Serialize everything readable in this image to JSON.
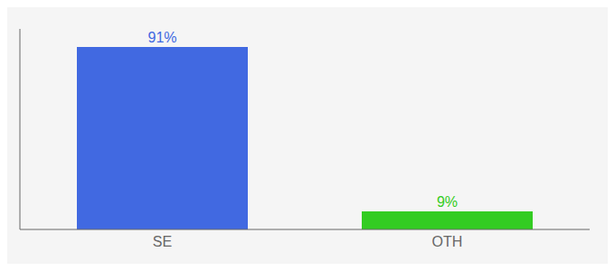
{
  "chart_data": {
    "type": "bar",
    "categories": [
      "SE",
      "OTH"
    ],
    "values": [
      91,
      9
    ],
    "value_labels": [
      "91%",
      "9%"
    ],
    "colors": [
      "#4169e1",
      "#33cc22"
    ],
    "ylim": [
      0,
      100
    ],
    "data_labels": true,
    "tick_labels": "x",
    "grid": false
  }
}
